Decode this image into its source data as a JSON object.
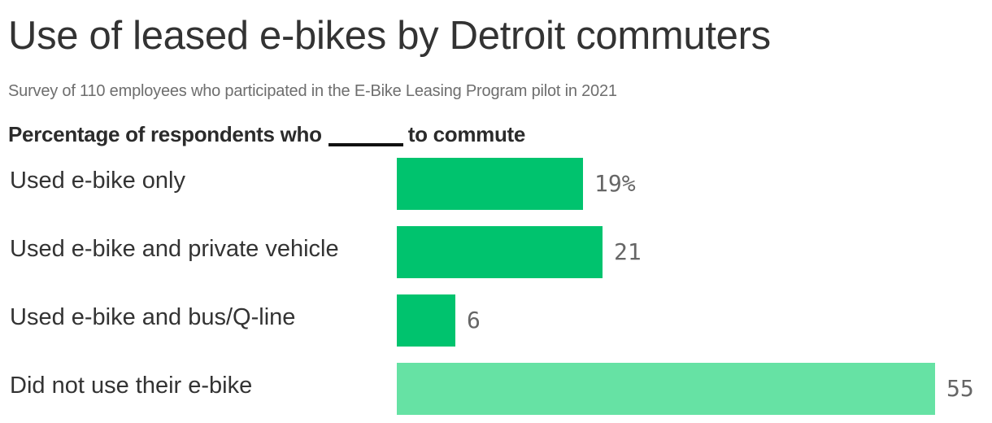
{
  "header": {
    "title": "Use of leased e-bikes by Detroit commuters",
    "subtitle": "Survey of 110 employees who participated in the E-Bike Leasing Program pilot in 2021",
    "prompt_before": "Percentage of respondents who",
    "prompt_after": "to commute"
  },
  "colors": {
    "bar_primary": "#00c36e",
    "bar_light": "#66e2a4",
    "text": "#333333",
    "value_text": "#666666"
  },
  "rows": [
    {
      "label": "Used e-bike only",
      "value": 19,
      "display": "19%",
      "color": "#00c36e"
    },
    {
      "label": "Used e-bike and private vehicle",
      "value": 21,
      "display": "21",
      "color": "#00c36e"
    },
    {
      "label": "Used e-bike and bus/Q-line",
      "value": 6,
      "display": "6",
      "color": "#00c36e"
    },
    {
      "label": "Did not use their e-bike",
      "value": 55,
      "display": "55",
      "color": "#66e2a4"
    }
  ],
  "chart_data": {
    "type": "bar",
    "orientation": "horizontal",
    "title": "Use of leased e-bikes by Detroit commuters",
    "subtitle": "Survey of 110 employees who participated in the E-Bike Leasing Program pilot in 2021",
    "xlabel": "Percentage of respondents who ____ to commute",
    "ylabel": "",
    "categories": [
      "Used e-bike only",
      "Used e-bike and private vehicle",
      "Used e-bike and bus/Q-line",
      "Did not use their e-bike"
    ],
    "values": [
      19,
      21,
      6,
      55
    ],
    "unit": "%",
    "xlim": [
      0,
      55
    ],
    "grid": false,
    "legend": null
  }
}
